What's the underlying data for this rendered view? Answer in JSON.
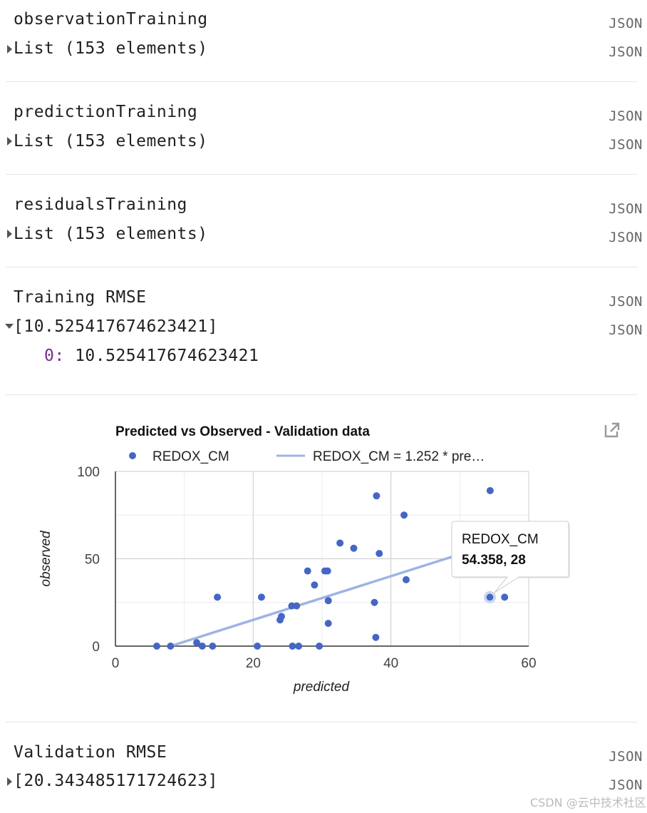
{
  "sections": [
    {
      "title": "observationTraining",
      "value": "List (153 elements)"
    },
    {
      "title": "predictionTraining",
      "value": "List (153 elements)"
    },
    {
      "title": "residualsTraining",
      "value": "List (153 elements)"
    },
    {
      "title": "Training RMSE",
      "value": "[10.525417674623421]",
      "child_key": "0:",
      "child_value": "10.525417674623421"
    },
    {
      "title": "Validation RMSE",
      "value": "[20.343485171724623]"
    }
  ],
  "json_label": "JSON",
  "chart_data": {
    "type": "scatter",
    "title": "Predicted vs Observed - Validation data",
    "xlabel": "predicted",
    "ylabel": "observed",
    "xlim": [
      0,
      60
    ],
    "ylim": [
      0,
      100
    ],
    "x_ticks": [
      "0",
      "20",
      "40",
      "60"
    ],
    "y_ticks": [
      "0",
      "50",
      "100"
    ],
    "grid": true,
    "legend_position": "top",
    "legend": [
      "REDOX_CM",
      "REDOX_CM = 1.252 * pre…"
    ],
    "series": [
      {
        "name": "REDOX_CM",
        "color": "#4566c4",
        "points": [
          [
            6,
            0
          ],
          [
            8,
            0
          ],
          [
            11.8,
            2
          ],
          [
            12.6,
            0
          ],
          [
            14.1,
            0
          ],
          [
            14.8,
            28
          ],
          [
            20.6,
            0
          ],
          [
            21.2,
            28
          ],
          [
            23.9,
            15
          ],
          [
            24.1,
            17
          ],
          [
            25.6,
            23
          ],
          [
            25.7,
            0
          ],
          [
            26.3,
            23
          ],
          [
            26.6,
            0
          ],
          [
            27.9,
            43
          ],
          [
            28.9,
            35
          ],
          [
            29.6,
            0
          ],
          [
            30.4,
            43
          ],
          [
            30.8,
            43
          ],
          [
            30.9,
            26
          ],
          [
            30.9,
            13
          ],
          [
            32.6,
            59
          ],
          [
            34.6,
            56
          ],
          [
            37.6,
            25
          ],
          [
            37.8,
            5
          ],
          [
            37.9,
            86
          ],
          [
            38.3,
            53
          ],
          [
            41.9,
            75
          ],
          [
            42.2,
            38
          ],
          [
            54.358,
            28
          ],
          [
            54.4,
            89
          ],
          [
            56.5,
            28
          ]
        ]
      },
      {
        "name": "REDOX_CM = 1.252 * pre…",
        "type": "line",
        "color": "#9fb3e3",
        "points": [
          [
            8,
            0
          ],
          [
            49.8,
            52.3
          ]
        ]
      }
    ],
    "tooltip": {
      "series": "REDOX_CM",
      "value": "54.358, 28",
      "x": 54.358,
      "y": 28
    }
  },
  "watermark": "CSDN @云中技术社区",
  "icons": {
    "expand": "triangle-right-icon",
    "collapse": "triangle-down-icon",
    "popout": "open-in-new-icon"
  }
}
